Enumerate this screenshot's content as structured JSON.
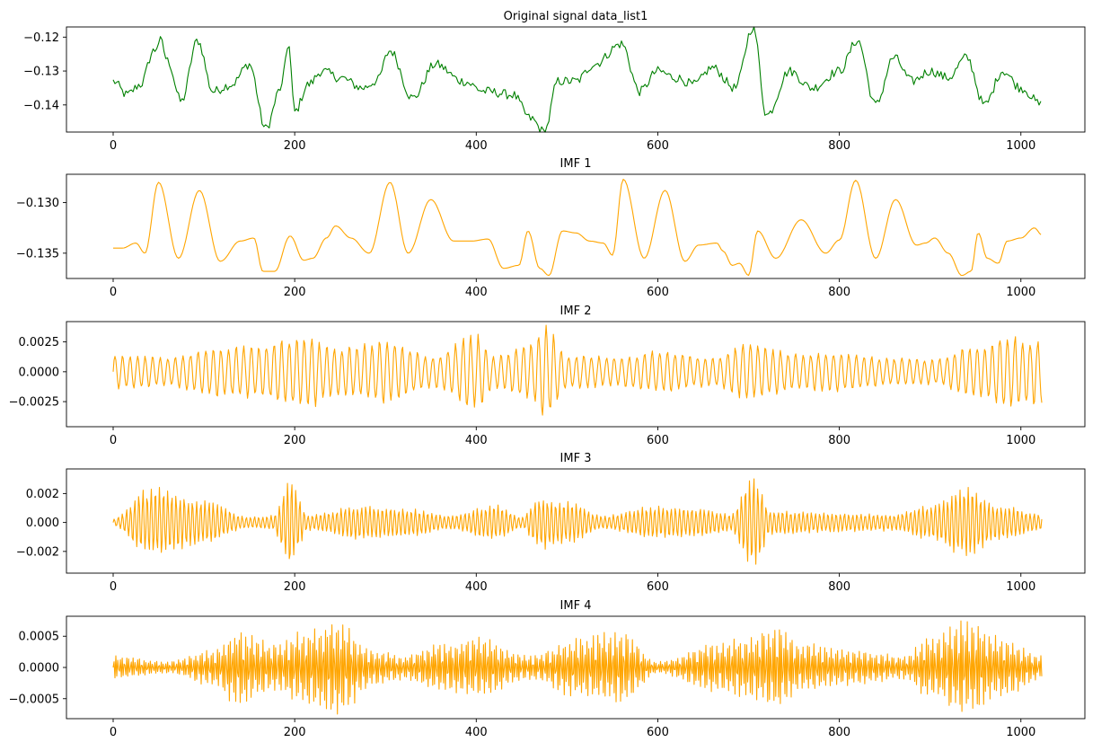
{
  "chart_data": [
    {
      "type": "line",
      "title": "Original signal data_list1",
      "color": "#008000",
      "xlim": [
        0,
        1023
      ],
      "ylim": [
        -0.148,
        -0.117
      ],
      "xticks": [
        0,
        200,
        400,
        600,
        800,
        1000
      ],
      "yticks": [
        -0.12,
        -0.13,
        -0.14
      ],
      "ytick_labels": [
        "−0.12",
        "−0.13",
        "−0.14"
      ],
      "series": [
        {
          "values_at_control_points": {
            "x": [
              0,
              15,
              30,
              45,
              52,
              60,
              75,
              93,
              110,
              130,
              150,
              168,
              185,
              193,
              200,
              215,
              230,
              250,
              275,
              290,
              305,
              330,
              355,
              385,
              410,
              440,
              460,
              475,
              490,
              510,
              530,
              560,
              580,
              600,
              620,
              640,
              660,
              685,
              705,
              720,
              745,
              770,
              800,
              820,
              840,
              860,
              880,
              900,
              920,
              940,
              960,
              980,
              1000,
              1023
            ],
            "y": [
              -0.133,
              -0.137,
              -0.134,
              -0.124,
              -0.121,
              -0.127,
              -0.139,
              -0.121,
              -0.136,
              -0.134,
              -0.128,
              -0.147,
              -0.135,
              -0.122,
              -0.142,
              -0.134,
              -0.13,
              -0.132,
              -0.135,
              -0.133,
              -0.124,
              -0.138,
              -0.128,
              -0.133,
              -0.136,
              -0.137,
              -0.144,
              -0.148,
              -0.133,
              -0.133,
              -0.128,
              -0.122,
              -0.136,
              -0.13,
              -0.132,
              -0.134,
              -0.129,
              -0.135,
              -0.117,
              -0.143,
              -0.13,
              -0.135,
              -0.13,
              -0.121,
              -0.14,
              -0.126,
              -0.133,
              -0.13,
              -0.132,
              -0.126,
              -0.14,
              -0.13,
              -0.135,
              -0.14
            ]
          }
        }
      ]
    },
    {
      "type": "line",
      "title": "IMF 1",
      "color": "#ffa500",
      "xlim": [
        0,
        1023
      ],
      "ylim": [
        -0.1375,
        -0.1272
      ],
      "xticks": [
        0,
        200,
        400,
        600,
        800,
        1000
      ],
      "yticks": [
        -0.13,
        -0.135
      ],
      "ytick_labels": [
        "−0.130",
        "−0.135"
      ],
      "series": [
        {
          "values_at_control_points": {
            "x": [
              0,
              10,
              25,
              35,
              50,
              72,
              95,
              118,
              140,
              155,
              165,
              178,
              195,
              210,
              220,
              235,
              245,
              262,
              282,
              305,
              325,
              350,
              375,
              395,
              413,
              430,
              447,
              457,
              470,
              480,
              495,
              510,
              525,
              540,
              550,
              562,
              585,
              608,
              630,
              645,
              665,
              672,
              682,
              690,
              700,
              710,
              730,
              758,
              785,
              800,
              818,
              840,
              862,
              885,
              895,
              905,
              920,
              935,
              945,
              953,
              963,
              975,
              985,
              1000,
              1015,
              1023
            ],
            "y": [
              -0.1345,
              -0.1345,
              -0.134,
              -0.135,
              -0.128,
              -0.1355,
              -0.1288,
              -0.1358,
              -0.1338,
              -0.1335,
              -0.1368,
              -0.1368,
              -0.1333,
              -0.1357,
              -0.1355,
              -0.1335,
              -0.1323,
              -0.1335,
              -0.135,
              -0.128,
              -0.135,
              -0.1297,
              -0.1338,
              -0.1338,
              -0.1336,
              -0.1365,
              -0.1362,
              -0.1328,
              -0.1365,
              -0.1372,
              -0.1328,
              -0.133,
              -0.1338,
              -0.134,
              -0.1352,
              -0.1277,
              -0.1355,
              -0.1288,
              -0.1358,
              -0.1342,
              -0.134,
              -0.1348,
              -0.1362,
              -0.136,
              -0.1372,
              -0.1328,
              -0.1355,
              -0.1317,
              -0.135,
              -0.1337,
              -0.1278,
              -0.1355,
              -0.1297,
              -0.1342,
              -0.134,
              -0.1335,
              -0.135,
              -0.1372,
              -0.1368,
              -0.133,
              -0.1355,
              -0.136,
              -0.1338,
              -0.1335,
              -0.1325,
              -0.1332
            ]
          }
        }
      ]
    },
    {
      "type": "line",
      "title": "IMF 2",
      "color": "#ffa500",
      "xlim": [
        0,
        1023
      ],
      "ylim": [
        -0.0046,
        0.0042
      ],
      "xticks": [
        0,
        200,
        400,
        600,
        800,
        1000
      ],
      "yticks": [
        0.0025,
        0.0,
        -0.0025
      ],
      "ytick_labels": [
        "0.0025",
        "0.0000",
        "−0.0025"
      ],
      "series": [
        {
          "envelope_at_control_points": {
            "x": [
              0,
              60,
              120,
              160,
              210,
              250,
              300,
              350,
              400,
              420,
              460,
              475,
              500,
              560,
              600,
              660,
              700,
              760,
              800,
              860,
              900,
              950,
              985,
              1023
            ],
            "amplitude": [
              0.0015,
              0.0013,
              0.0022,
              0.0023,
              0.0032,
              0.0022,
              0.0028,
              0.0014,
              0.0033,
              0.0014,
              0.0025,
              0.0042,
              0.0015,
              0.0013,
              0.0018,
              0.0013,
              0.0025,
              0.0016,
              0.0017,
              0.0012,
              0.0011,
              0.0022,
              0.0032,
              0.0028
            ]
          },
          "cycles_per_sample": 0.12
        }
      ]
    },
    {
      "type": "line",
      "title": "IMF 3",
      "color": "#ffa500",
      "xlim": [
        0,
        1023
      ],
      "ylim": [
        -0.0035,
        0.0037
      ],
      "xticks": [
        0,
        200,
        400,
        600,
        800,
        1000
      ],
      "yticks": [
        0.002,
        0.0,
        -0.002
      ],
      "ytick_labels": [
        "0.002",
        "0.000",
        "−0.002"
      ],
      "series": [
        {
          "envelope_at_control_points": {
            "x": [
              0,
              40,
              100,
              150,
              175,
              195,
              215,
              270,
              330,
              370,
              420,
              450,
              470,
              500,
              540,
              600,
              650,
              680,
              705,
              725,
              780,
              860,
              900,
              940,
              980,
              1023
            ],
            "amplitude": [
              0.0003,
              0.0025,
              0.0016,
              0.0004,
              0.0005,
              0.0032,
              0.0006,
              0.0012,
              0.001,
              0.0005,
              0.0013,
              0.0004,
              0.002,
              0.0015,
              0.0005,
              0.0012,
              0.001,
              0.0006,
              0.0035,
              0.0009,
              0.0007,
              0.0006,
              0.0012,
              0.0025,
              0.0012,
              0.0006
            ]
          },
          "cycles_per_sample": 0.22
        }
      ]
    },
    {
      "type": "line",
      "title": "IMF 4",
      "color": "#ffa500",
      "xlim": [
        0,
        1023
      ],
      "ylim": [
        -0.00082,
        0.00082
      ],
      "xticks": [
        0,
        200,
        400,
        600,
        800,
        1000
      ],
      "yticks": [
        0.0005,
        0.0,
        -0.0005
      ],
      "ytick_labels": [
        "0.0005",
        "0.0000",
        "−0.0005"
      ],
      "series": [
        {
          "envelope_at_control_points": {
            "x": [
              0,
              60,
              110,
              135,
              180,
              210,
              245,
              290,
              320,
              360,
              400,
              460,
              510,
              560,
              600,
              660,
              700,
              730,
              760,
              810,
              870,
              900,
              940,
              980,
              1023
            ],
            "amplitude": [
              0.0002,
              0.0001,
              0.0003,
              0.0006,
              0.0004,
              0.0006,
              0.0008,
              0.0003,
              0.0002,
              0.0004,
              0.0005,
              0.0002,
              0.0005,
              0.0006,
              0.0001,
              0.0004,
              0.0005,
              0.0007,
              0.0004,
              0.0003,
              0.0002,
              0.0005,
              0.0008,
              0.0005,
              0.0002
            ]
          },
          "cycles_per_sample": 0.42
        }
      ]
    }
  ]
}
